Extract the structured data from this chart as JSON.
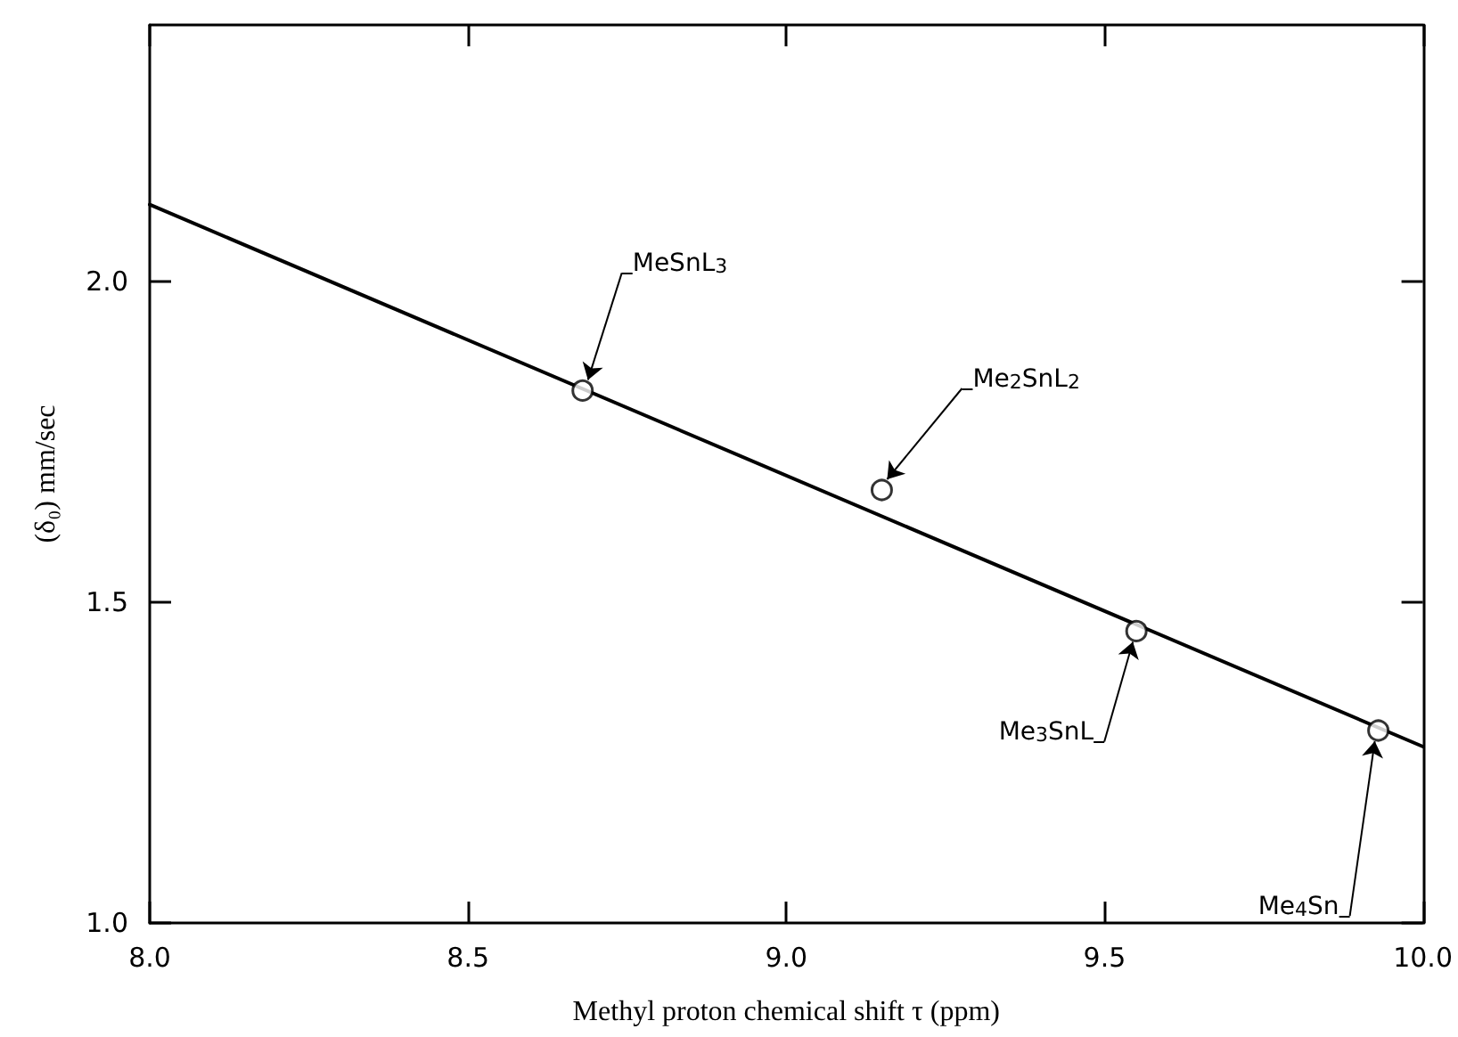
{
  "chart_data": {
    "type": "scatter",
    "xlabel": "Methyl proton chemical shift τ (ppm)",
    "ylabel": "(δ₀) mm/sec",
    "xlim": [
      8.0,
      10.0
    ],
    "xticks": [
      {
        "value": 8.0,
        "label": "8.0"
      },
      {
        "value": 8.5,
        "label": "8.5"
      },
      {
        "value": 9.0,
        "label": "9.0"
      },
      {
        "value": 9.5,
        "label": "9.5"
      },
      {
        "value": 10.0,
        "label": "10.0"
      }
    ],
    "ylim": [
      1.0,
      2.4
    ],
    "yticks": [
      {
        "value": 1.0,
        "label": "1.0"
      },
      {
        "value": 1.5,
        "label": "1.5"
      },
      {
        "value": 2.0,
        "label": "2.0"
      }
    ],
    "grid": false,
    "series": [
      {
        "color": "#000000",
        "marker": "circle",
        "x": [
          8.68,
          9.15,
          9.55,
          9.93
        ],
        "values": [
          1.83,
          1.675,
          1.455,
          1.3
        ]
      },
      {
        "type": "line",
        "color": "#000000",
        "line_style": "solid",
        "marker": "none",
        "x": [
          8.0,
          10.0
        ],
        "values": [
          2.12,
          1.275
        ]
      }
    ],
    "annotations": [
      {
        "text": "MeSnL$_{3}$",
        "x": 8.68,
        "y": 1.83
      },
      {
        "text": "Me$_{2}$SnL$_{2}$",
        "x": 9.15,
        "y": 1.675
      },
      {
        "text": "Me$_{3}$SnL",
        "x": 9.55,
        "y": 1.455
      },
      {
        "text": "Me$_{4}$Sn",
        "x": 9.93,
        "y": 1.3
      }
    ]
  }
}
